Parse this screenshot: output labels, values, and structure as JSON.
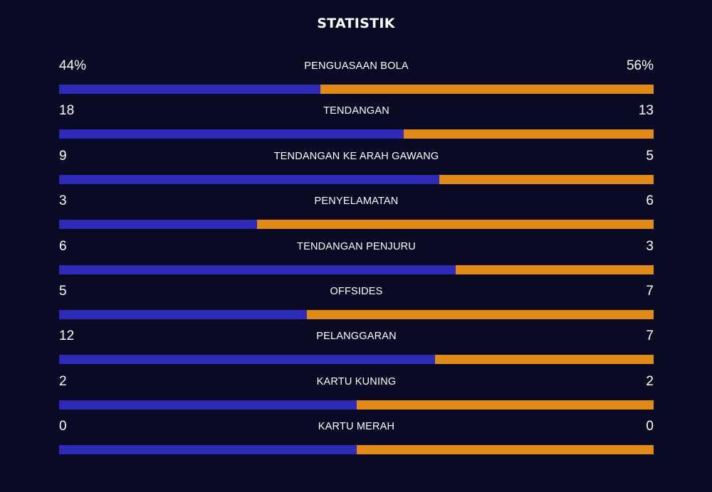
{
  "title": "STATISTIK",
  "colors": {
    "background": "#0b0a24",
    "home": "#2d2ab7",
    "away": "#e08a17",
    "text": "#ffffff"
  },
  "stats": [
    {
      "label": "PENGUASAAN BOLA",
      "home": "44%",
      "away": "56%",
      "home_share": 0.44
    },
    {
      "label": "TENDANGAN",
      "home": "18",
      "away": "13",
      "home_share": 0.58
    },
    {
      "label": "TENDANGAN KE ARAH GAWANG",
      "home": "9",
      "away": "5",
      "home_share": 0.64
    },
    {
      "label": "PENYELAMATAN",
      "home": "3",
      "away": "6",
      "home_share": 0.333
    },
    {
      "label": "TENDANGAN PENJURU",
      "home": "6",
      "away": "3",
      "home_share": 0.667
    },
    {
      "label": "OFFSIDES",
      "home": "5",
      "away": "7",
      "home_share": 0.417
    },
    {
      "label": "PELANGGARAN",
      "home": "12",
      "away": "7",
      "home_share": 0.632
    },
    {
      "label": "KARTU KUNING",
      "home": "2",
      "away": "2",
      "home_share": 0.5
    },
    {
      "label": "KARTU MERAH",
      "home": "0",
      "away": "0",
      "home_share": 0.5
    }
  ]
}
